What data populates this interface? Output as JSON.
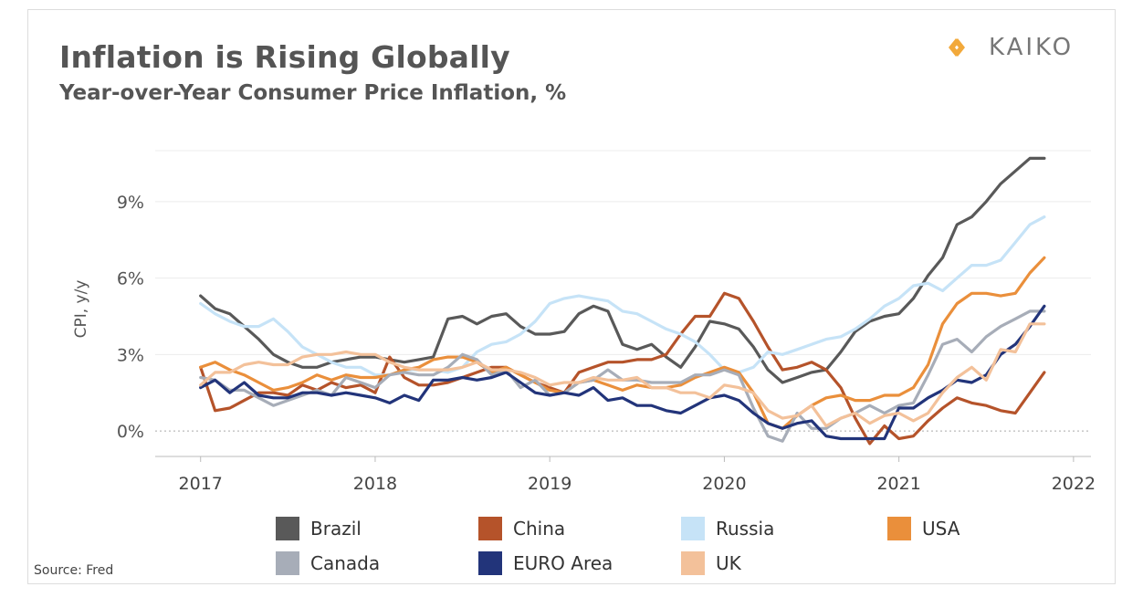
{
  "source": "Source: Fred",
  "logo": {
    "text": "KAIKO",
    "mark_color": "#f2a93b"
  },
  "chart_data": {
    "type": "line",
    "title": "Inflation is Rising Globally",
    "subtitle": "Year-over-Year Consumer Price Inflation, %",
    "ylabel": "CPI, y/y",
    "xlabel": "",
    "xlim": [
      2017,
      2022
    ],
    "ylim": [
      -1,
      11
    ],
    "yticks": [
      0,
      3,
      6,
      9
    ],
    "ytick_labels": [
      "0%",
      "3%",
      "6%",
      "9%"
    ],
    "xticks": [
      2017,
      2018,
      2019,
      2020,
      2021,
      2022
    ],
    "xtick_labels": [
      "2017",
      "2018",
      "2019",
      "2020",
      "2021",
      "2022"
    ],
    "grid": "horizontal",
    "legend_position": "bottom",
    "x": [
      2017.0,
      2017.083,
      2017.167,
      2017.25,
      2017.333,
      2017.417,
      2017.5,
      2017.583,
      2017.667,
      2017.75,
      2017.833,
      2017.917,
      2018.0,
      2018.083,
      2018.167,
      2018.25,
      2018.333,
      2018.417,
      2018.5,
      2018.583,
      2018.667,
      2018.75,
      2018.833,
      2018.917,
      2019.0,
      2019.083,
      2019.167,
      2019.25,
      2019.333,
      2019.417,
      2019.5,
      2019.583,
      2019.667,
      2019.75,
      2019.833,
      2019.917,
      2020.0,
      2020.083,
      2020.167,
      2020.25,
      2020.333,
      2020.417,
      2020.5,
      2020.583,
      2020.667,
      2020.75,
      2020.833,
      2020.917,
      2021.0,
      2021.083,
      2021.167,
      2021.25,
      2021.333,
      2021.417,
      2021.5,
      2021.583,
      2021.667,
      2021.75,
      2021.833
    ],
    "series": [
      {
        "name": "Brazil",
        "color": "#595959",
        "values": [
          5.3,
          4.8,
          4.6,
          4.1,
          3.6,
          3.0,
          2.7,
          2.5,
          2.5,
          2.7,
          2.8,
          2.9,
          2.9,
          2.8,
          2.7,
          2.8,
          2.9,
          4.4,
          4.5,
          4.2,
          4.5,
          4.6,
          4.1,
          3.8,
          3.8,
          3.9,
          4.6,
          4.9,
          4.7,
          3.4,
          3.2,
          3.4,
          2.9,
          2.5,
          3.3,
          4.3,
          4.2,
          4.0,
          3.3,
          2.4,
          1.9,
          2.1,
          2.3,
          2.4,
          3.1,
          3.9,
          4.3,
          4.5,
          4.6,
          5.2,
          6.1,
          6.8,
          8.1,
          8.4,
          9.0,
          9.7,
          10.2,
          10.7,
          10.7
        ]
      },
      {
        "name": "China",
        "color": "#b5532a",
        "values": [
          2.5,
          0.8,
          0.9,
          1.2,
          1.5,
          1.5,
          1.4,
          1.8,
          1.6,
          1.9,
          1.7,
          1.8,
          1.5,
          2.9,
          2.1,
          1.8,
          1.8,
          1.9,
          2.1,
          2.3,
          2.5,
          2.5,
          2.2,
          1.9,
          1.7,
          1.5,
          2.3,
          2.5,
          2.7,
          2.7,
          2.8,
          2.8,
          3.0,
          3.8,
          4.5,
          4.5,
          5.4,
          5.2,
          4.3,
          3.3,
          2.4,
          2.5,
          2.7,
          2.4,
          1.7,
          0.5,
          -0.5,
          0.2,
          -0.3,
          -0.2,
          0.4,
          0.9,
          1.3,
          1.1,
          1.0,
          0.8,
          0.7,
          1.5,
          2.3
        ]
      },
      {
        "name": "Russia",
        "color": "#c6e3f7",
        "values": [
          5.0,
          4.6,
          4.3,
          4.1,
          4.1,
          4.4,
          3.9,
          3.3,
          3.0,
          2.7,
          2.5,
          2.5,
          2.2,
          2.2,
          2.4,
          2.4,
          2.4,
          2.3,
          2.5,
          3.1,
          3.4,
          3.5,
          3.8,
          4.3,
          5.0,
          5.2,
          5.3,
          5.2,
          5.1,
          4.7,
          4.6,
          4.3,
          4.0,
          3.8,
          3.5,
          3.0,
          2.4,
          2.3,
          2.5,
          3.1,
          3.0,
          3.2,
          3.4,
          3.6,
          3.7,
          4.0,
          4.4,
          4.9,
          5.2,
          5.7,
          5.8,
          5.5,
          6.0,
          6.5,
          6.5,
          6.7,
          7.4,
          8.1,
          8.4
        ]
      },
      {
        "name": "USA",
        "color": "#ea8f3b",
        "values": [
          2.5,
          2.7,
          2.4,
          2.2,
          1.9,
          1.6,
          1.7,
          1.9,
          2.2,
          2.0,
          2.2,
          2.1,
          2.1,
          2.2,
          2.4,
          2.5,
          2.8,
          2.9,
          2.9,
          2.7,
          2.3,
          2.5,
          2.2,
          1.9,
          1.6,
          1.5,
          1.9,
          2.0,
          1.8,
          1.6,
          1.8,
          1.7,
          1.7,
          1.8,
          2.1,
          2.3,
          2.5,
          2.3,
          1.5,
          0.3,
          0.1,
          0.6,
          1.0,
          1.3,
          1.4,
          1.2,
          1.2,
          1.4,
          1.4,
          1.7,
          2.6,
          4.2,
          5.0,
          5.4,
          5.4,
          5.3,
          5.4,
          6.2,
          6.8
        ]
      },
      {
        "name": "Canada",
        "color": "#a7adb8",
        "values": [
          2.1,
          2.0,
          1.6,
          1.6,
          1.3,
          1.0,
          1.2,
          1.4,
          1.6,
          1.4,
          2.1,
          1.9,
          1.7,
          2.2,
          2.3,
          2.2,
          2.2,
          2.5,
          3.0,
          2.8,
          2.2,
          2.4,
          1.7,
          2.0,
          1.4,
          1.5,
          1.9,
          2.0,
          2.4,
          2.0,
          2.0,
          1.9,
          1.9,
          1.9,
          2.2,
          2.2,
          2.4,
          2.2,
          0.9,
          -0.2,
          -0.4,
          0.7,
          0.1,
          0.1,
          0.5,
          0.7,
          1.0,
          0.7,
          1.0,
          1.1,
          2.2,
          3.4,
          3.6,
          3.1,
          3.7,
          4.1,
          4.4,
          4.7,
          4.7
        ]
      },
      {
        "name": "EURO Area",
        "color": "#22347a",
        "values": [
          1.7,
          2.0,
          1.5,
          1.9,
          1.4,
          1.3,
          1.3,
          1.5,
          1.5,
          1.4,
          1.5,
          1.4,
          1.3,
          1.1,
          1.4,
          1.2,
          2.0,
          2.0,
          2.1,
          2.0,
          2.1,
          2.3,
          1.9,
          1.5,
          1.4,
          1.5,
          1.4,
          1.7,
          1.2,
          1.3,
          1.0,
          1.0,
          0.8,
          0.7,
          1.0,
          1.3,
          1.4,
          1.2,
          0.7,
          0.3,
          0.1,
          0.3,
          0.4,
          -0.2,
          -0.3,
          -0.3,
          -0.3,
          -0.3,
          0.9,
          0.9,
          1.3,
          1.6,
          2.0,
          1.9,
          2.2,
          3.0,
          3.4,
          4.1,
          4.9
        ]
      },
      {
        "name": "UK",
        "color": "#f3c19a",
        "values": [
          1.8,
          2.3,
          2.3,
          2.6,
          2.7,
          2.6,
          2.6,
          2.9,
          3.0,
          3.0,
          3.1,
          3.0,
          3.0,
          2.7,
          2.5,
          2.4,
          2.4,
          2.4,
          2.5,
          2.7,
          2.4,
          2.4,
          2.3,
          2.1,
          1.8,
          1.9,
          1.9,
          2.1,
          2.0,
          2.0,
          2.1,
          1.7,
          1.7,
          1.5,
          1.5,
          1.3,
          1.8,
          1.7,
          1.5,
          0.8,
          0.5,
          0.6,
          1.0,
          0.2,
          0.5,
          0.7,
          0.3,
          0.6,
          0.7,
          0.4,
          0.7,
          1.5,
          2.1,
          2.5,
          2.0,
          3.2,
          3.1,
          4.2,
          4.2
        ]
      }
    ]
  }
}
